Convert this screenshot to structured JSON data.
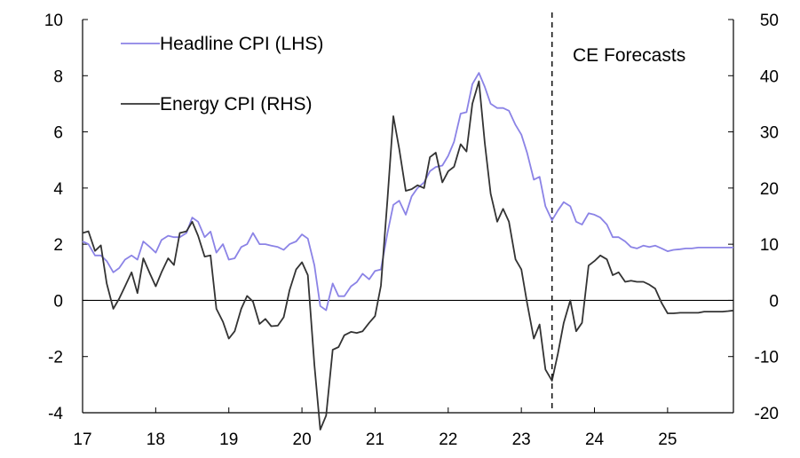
{
  "chart_data": {
    "type": "line",
    "title": "",
    "xlabel": "",
    "ylabel_left": "",
    "ylabel_right": "",
    "x_ticks": [
      "17",
      "18",
      "19",
      "20",
      "21",
      "22",
      "23",
      "24",
      "25"
    ],
    "x_range": [
      2017.0,
      2025.9
    ],
    "y_left": {
      "range": [
        -4,
        10
      ],
      "ticks": [
        -4,
        -2,
        0,
        2,
        4,
        6,
        8,
        10
      ]
    },
    "y_right": {
      "range": [
        -20,
        50
      ],
      "ticks": [
        -20,
        -10,
        0,
        10,
        20,
        30,
        40,
        50
      ]
    },
    "grid": false,
    "legend_position": "top-left",
    "annotations": [
      {
        "text": "CE Forecasts",
        "at_x": 2023.42,
        "style": "dashed vertical line"
      }
    ],
    "series": [
      {
        "name": "Headline CPI (LHS)",
        "axis": "left",
        "color": "#8b83e6",
        "points": [
          [
            2017.0,
            2.1
          ],
          [
            2017.08,
            2.0
          ],
          [
            2017.17,
            1.6
          ],
          [
            2017.25,
            1.6
          ],
          [
            2017.33,
            1.4
          ],
          [
            2017.42,
            1.0
          ],
          [
            2017.5,
            1.15
          ],
          [
            2017.58,
            1.45
          ],
          [
            2017.67,
            1.6
          ],
          [
            2017.75,
            1.45
          ],
          [
            2017.83,
            2.1
          ],
          [
            2017.92,
            1.9
          ],
          [
            2018.0,
            1.7
          ],
          [
            2018.08,
            2.15
          ],
          [
            2018.17,
            2.3
          ],
          [
            2018.25,
            2.25
          ],
          [
            2018.33,
            2.25
          ],
          [
            2018.42,
            2.4
          ],
          [
            2018.5,
            2.95
          ],
          [
            2018.58,
            2.8
          ],
          [
            2018.67,
            2.25
          ],
          [
            2018.75,
            2.45
          ],
          [
            2018.83,
            1.7
          ],
          [
            2018.92,
            2.0
          ],
          [
            2019.0,
            1.45
          ],
          [
            2019.08,
            1.5
          ],
          [
            2019.17,
            1.9
          ],
          [
            2019.25,
            2.0
          ],
          [
            2019.33,
            2.4
          ],
          [
            2019.42,
            2.0
          ],
          [
            2019.5,
            2.0
          ],
          [
            2019.58,
            1.95
          ],
          [
            2019.67,
            1.9
          ],
          [
            2019.75,
            1.8
          ],
          [
            2019.83,
            2.0
          ],
          [
            2019.92,
            2.1
          ],
          [
            2020.0,
            2.35
          ],
          [
            2020.08,
            2.2
          ],
          [
            2020.17,
            1.25
          ],
          [
            2020.25,
            -0.2
          ],
          [
            2020.33,
            -0.35
          ],
          [
            2020.42,
            0.6
          ],
          [
            2020.5,
            0.15
          ],
          [
            2020.58,
            0.15
          ],
          [
            2020.67,
            0.5
          ],
          [
            2020.75,
            0.65
          ],
          [
            2020.83,
            0.95
          ],
          [
            2020.92,
            0.75
          ],
          [
            2021.0,
            1.05
          ],
          [
            2021.08,
            1.1
          ],
          [
            2021.17,
            2.4
          ],
          [
            2021.25,
            3.4
          ],
          [
            2021.33,
            3.55
          ],
          [
            2021.42,
            3.05
          ],
          [
            2021.5,
            3.7
          ],
          [
            2021.58,
            4.0
          ],
          [
            2021.67,
            4.2
          ],
          [
            2021.75,
            4.6
          ],
          [
            2021.83,
            4.75
          ],
          [
            2021.92,
            4.8
          ],
          [
            2022.0,
            5.15
          ],
          [
            2022.08,
            5.65
          ],
          [
            2022.17,
            6.65
          ],
          [
            2022.25,
            6.7
          ],
          [
            2022.33,
            7.7
          ],
          [
            2022.42,
            8.1
          ],
          [
            2022.5,
            7.6
          ],
          [
            2022.58,
            7.0
          ],
          [
            2022.67,
            6.85
          ],
          [
            2022.75,
            6.85
          ],
          [
            2022.83,
            6.75
          ],
          [
            2022.92,
            6.25
          ],
          [
            2023.0,
            5.9
          ],
          [
            2023.08,
            5.25
          ],
          [
            2023.17,
            4.3
          ],
          [
            2023.25,
            4.4
          ],
          [
            2023.33,
            3.35
          ],
          [
            2023.42,
            2.85
          ],
          [
            2023.5,
            3.2
          ],
          [
            2023.58,
            3.5
          ],
          [
            2023.67,
            3.35
          ],
          [
            2023.75,
            2.8
          ],
          [
            2023.83,
            2.7
          ],
          [
            2023.92,
            3.1
          ],
          [
            2024.0,
            3.05
          ],
          [
            2024.08,
            2.95
          ],
          [
            2024.17,
            2.7
          ],
          [
            2024.25,
            2.25
          ],
          [
            2024.33,
            2.25
          ],
          [
            2024.42,
            2.1
          ],
          [
            2024.5,
            1.9
          ],
          [
            2024.58,
            1.85
          ],
          [
            2024.67,
            1.95
          ],
          [
            2024.75,
            1.9
          ],
          [
            2024.83,
            1.95
          ],
          [
            2024.92,
            1.85
          ],
          [
            2025.0,
            1.75
          ],
          [
            2025.08,
            1.8
          ],
          [
            2025.17,
            1.82
          ],
          [
            2025.25,
            1.85
          ],
          [
            2025.33,
            1.85
          ],
          [
            2025.42,
            1.88
          ],
          [
            2025.5,
            1.88
          ],
          [
            2025.58,
            1.88
          ],
          [
            2025.67,
            1.88
          ],
          [
            2025.75,
            1.88
          ],
          [
            2025.83,
            1.88
          ],
          [
            2025.9,
            1.88
          ]
        ]
      },
      {
        "name": "Energy CPI (RHS)",
        "axis": "right",
        "color": "#333333",
        "points": [
          [
            2017.0,
            12.0
          ],
          [
            2017.08,
            12.3
          ],
          [
            2017.17,
            8.8
          ],
          [
            2017.25,
            9.8
          ],
          [
            2017.33,
            3.0
          ],
          [
            2017.42,
            -1.5
          ],
          [
            2017.5,
            0.3
          ],
          [
            2017.58,
            2.5
          ],
          [
            2017.67,
            5.0
          ],
          [
            2017.75,
            1.3
          ],
          [
            2017.83,
            7.5
          ],
          [
            2017.92,
            4.8
          ],
          [
            2018.0,
            2.5
          ],
          [
            2018.08,
            5.0
          ],
          [
            2018.17,
            7.5
          ],
          [
            2018.25,
            6.3
          ],
          [
            2018.33,
            12.0
          ],
          [
            2018.42,
            12.3
          ],
          [
            2018.5,
            14.0
          ],
          [
            2018.58,
            11.5
          ],
          [
            2018.67,
            7.8
          ],
          [
            2018.75,
            8.0
          ],
          [
            2018.83,
            -1.5
          ],
          [
            2018.92,
            -3.8
          ],
          [
            2019.0,
            -6.8
          ],
          [
            2019.08,
            -5.5
          ],
          [
            2019.17,
            -1.5
          ],
          [
            2019.25,
            0.8
          ],
          [
            2019.33,
            -0.2
          ],
          [
            2019.42,
            -4.2
          ],
          [
            2019.5,
            -3.3
          ],
          [
            2019.58,
            -4.6
          ],
          [
            2019.67,
            -4.5
          ],
          [
            2019.75,
            -3.0
          ],
          [
            2019.83,
            1.8
          ],
          [
            2019.92,
            5.5
          ],
          [
            2020.0,
            6.8
          ],
          [
            2020.08,
            4.5
          ],
          [
            2020.17,
            -11.5
          ],
          [
            2020.25,
            -23.0
          ],
          [
            2020.33,
            -20.5
          ],
          [
            2020.42,
            -8.8
          ],
          [
            2020.5,
            -8.3
          ],
          [
            2020.58,
            -6.2
          ],
          [
            2020.67,
            -5.6
          ],
          [
            2020.75,
            -5.8
          ],
          [
            2020.83,
            -5.5
          ],
          [
            2020.92,
            -4.0
          ],
          [
            2021.0,
            -2.8
          ],
          [
            2021.08,
            2.6
          ],
          [
            2021.17,
            18.0
          ],
          [
            2021.25,
            32.8
          ],
          [
            2021.33,
            27.0
          ],
          [
            2021.42,
            19.5
          ],
          [
            2021.5,
            19.8
          ],
          [
            2021.58,
            20.5
          ],
          [
            2021.67,
            20.0
          ],
          [
            2021.75,
            25.5
          ],
          [
            2021.83,
            26.3
          ],
          [
            2021.92,
            21.0
          ],
          [
            2022.0,
            23.0
          ],
          [
            2022.08,
            23.8
          ],
          [
            2022.17,
            27.8
          ],
          [
            2022.25,
            26.5
          ],
          [
            2022.33,
            35.0
          ],
          [
            2022.42,
            39.0
          ],
          [
            2022.5,
            28.0
          ],
          [
            2022.58,
            19.0
          ],
          [
            2022.67,
            14.0
          ],
          [
            2022.75,
            16.3
          ],
          [
            2022.83,
            14.0
          ],
          [
            2022.92,
            7.3
          ],
          [
            2023.0,
            5.5
          ],
          [
            2023.08,
            -0.5
          ],
          [
            2023.17,
            -6.8
          ],
          [
            2023.25,
            -4.3
          ],
          [
            2023.33,
            -12.3
          ],
          [
            2023.42,
            -14.3
          ],
          [
            2023.5,
            -9.5
          ],
          [
            2023.58,
            -4.0
          ],
          [
            2023.67,
            0.0
          ],
          [
            2023.75,
            -5.5
          ],
          [
            2023.83,
            -4.0
          ],
          [
            2023.92,
            6.2
          ],
          [
            2024.0,
            7.0
          ],
          [
            2024.08,
            8.0
          ],
          [
            2024.17,
            7.3
          ],
          [
            2024.25,
            4.5
          ],
          [
            2024.33,
            5.0
          ],
          [
            2024.42,
            3.3
          ],
          [
            2024.5,
            3.5
          ],
          [
            2024.58,
            3.3
          ],
          [
            2024.67,
            3.3
          ],
          [
            2024.75,
            2.8
          ],
          [
            2024.83,
            2.1
          ],
          [
            2024.92,
            -0.5
          ],
          [
            2025.0,
            -2.3
          ],
          [
            2025.08,
            -2.3
          ],
          [
            2025.17,
            -2.2
          ],
          [
            2025.25,
            -2.2
          ],
          [
            2025.33,
            -2.2
          ],
          [
            2025.42,
            -2.2
          ],
          [
            2025.5,
            -2.0
          ],
          [
            2025.58,
            -2.0
          ],
          [
            2025.67,
            -2.0
          ],
          [
            2025.75,
            -2.0
          ],
          [
            2025.83,
            -1.9
          ],
          [
            2025.9,
            -1.8
          ]
        ]
      }
    ]
  }
}
